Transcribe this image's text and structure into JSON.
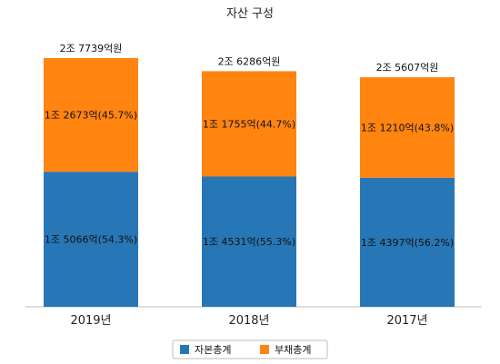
{
  "chart_data": {
    "type": "bar",
    "stacked": true,
    "title": "자산 구성",
    "unit": "억원",
    "categories": [
      "2019년",
      "2018년",
      "2017년"
    ],
    "totals": [
      27739,
      26286,
      25607
    ],
    "total_labels": [
      "2조 7739억원",
      "2조 6286억원",
      "2조 5607억원"
    ],
    "series": [
      {
        "name": "자본총계",
        "color": "#2777b6",
        "values": [
          15066,
          14531,
          14397
        ],
        "labels": [
          "1조 5066억(54.3%)",
          "1조 4531억(55.3%)",
          "1조 4397억(56.2%)"
        ]
      },
      {
        "name": "부채총계",
        "color": "#ff8410",
        "values": [
          12673,
          11755,
          11210
        ],
        "labels": [
          "1조 2673억(45.7%)",
          "1조 1755억(44.7%)",
          "1조 1210억(43.8%)"
        ]
      }
    ],
    "ylim": [
      0,
      30000
    ],
    "grid": false,
    "legend_position": "bottom"
  }
}
